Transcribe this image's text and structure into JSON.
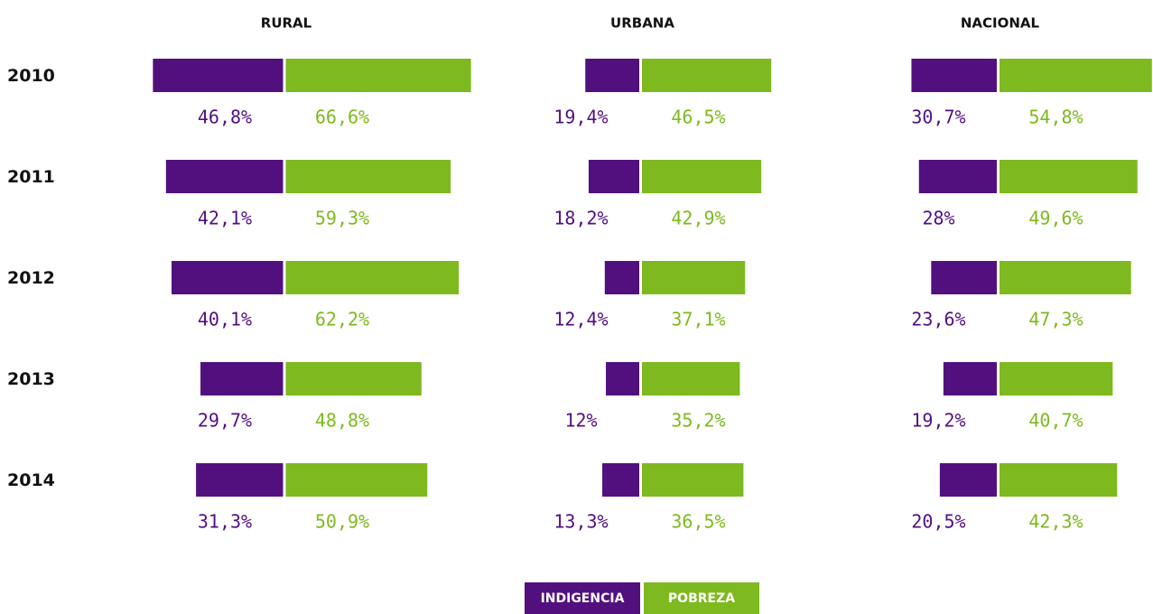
{
  "chart_data": [
    {
      "type": "bar",
      "title": "RURAL",
      "categories": [
        "2010",
        "2011",
        "2012",
        "2013",
        "2014"
      ],
      "series": [
        {
          "name": "INDIGENCIA",
          "color": "#52107f",
          "values": [
            46.8,
            42.1,
            40.1,
            29.7,
            31.3
          ],
          "value_labels": [
            "46,8%",
            "42,1%",
            "40,1%",
            "29,7%",
            "31,3%"
          ]
        },
        {
          "name": "POBREZA",
          "color": "#7eb91f",
          "values": [
            66.6,
            59.3,
            62.2,
            48.8,
            50.9
          ],
          "value_labels": [
            "66,6%",
            "59,3%",
            "62,2%",
            "48,8%",
            "50,9%"
          ]
        }
      ]
    },
    {
      "type": "bar",
      "title": "URBANA",
      "categories": [
        "2010",
        "2011",
        "2012",
        "2013",
        "2014"
      ],
      "series": [
        {
          "name": "INDIGENCIA",
          "color": "#52107f",
          "values": [
            19.4,
            18.2,
            12.4,
            12,
            13.3
          ],
          "value_labels": [
            "19,4%",
            "18,2%",
            "12,4%",
            "12%",
            "13,3%"
          ]
        },
        {
          "name": "POBREZA",
          "color": "#7eb91f",
          "values": [
            46.5,
            42.9,
            37.1,
            35.2,
            36.5
          ],
          "value_labels": [
            "46,5%",
            "42,9%",
            "37,1%",
            "35,2%",
            "36,5%"
          ]
        }
      ]
    },
    {
      "type": "bar",
      "title": "NACIONAL",
      "categories": [
        "2010",
        "2011",
        "2012",
        "2013",
        "2014"
      ],
      "series": [
        {
          "name": "INDIGENCIA",
          "color": "#52107f",
          "values": [
            30.7,
            28,
            23.6,
            19.2,
            20.5
          ],
          "value_labels": [
            "30,7%",
            "28%",
            "23,6%",
            "19,2%",
            "20,5%"
          ]
        },
        {
          "name": "POBREZA",
          "color": "#7eb91f",
          "values": [
            54.8,
            49.6,
            47.3,
            40.7,
            42.3
          ],
          "value_labels": [
            "54,8%",
            "49,6%",
            "47,3%",
            "40,7%",
            "42,3%"
          ]
        }
      ]
    }
  ]
}
